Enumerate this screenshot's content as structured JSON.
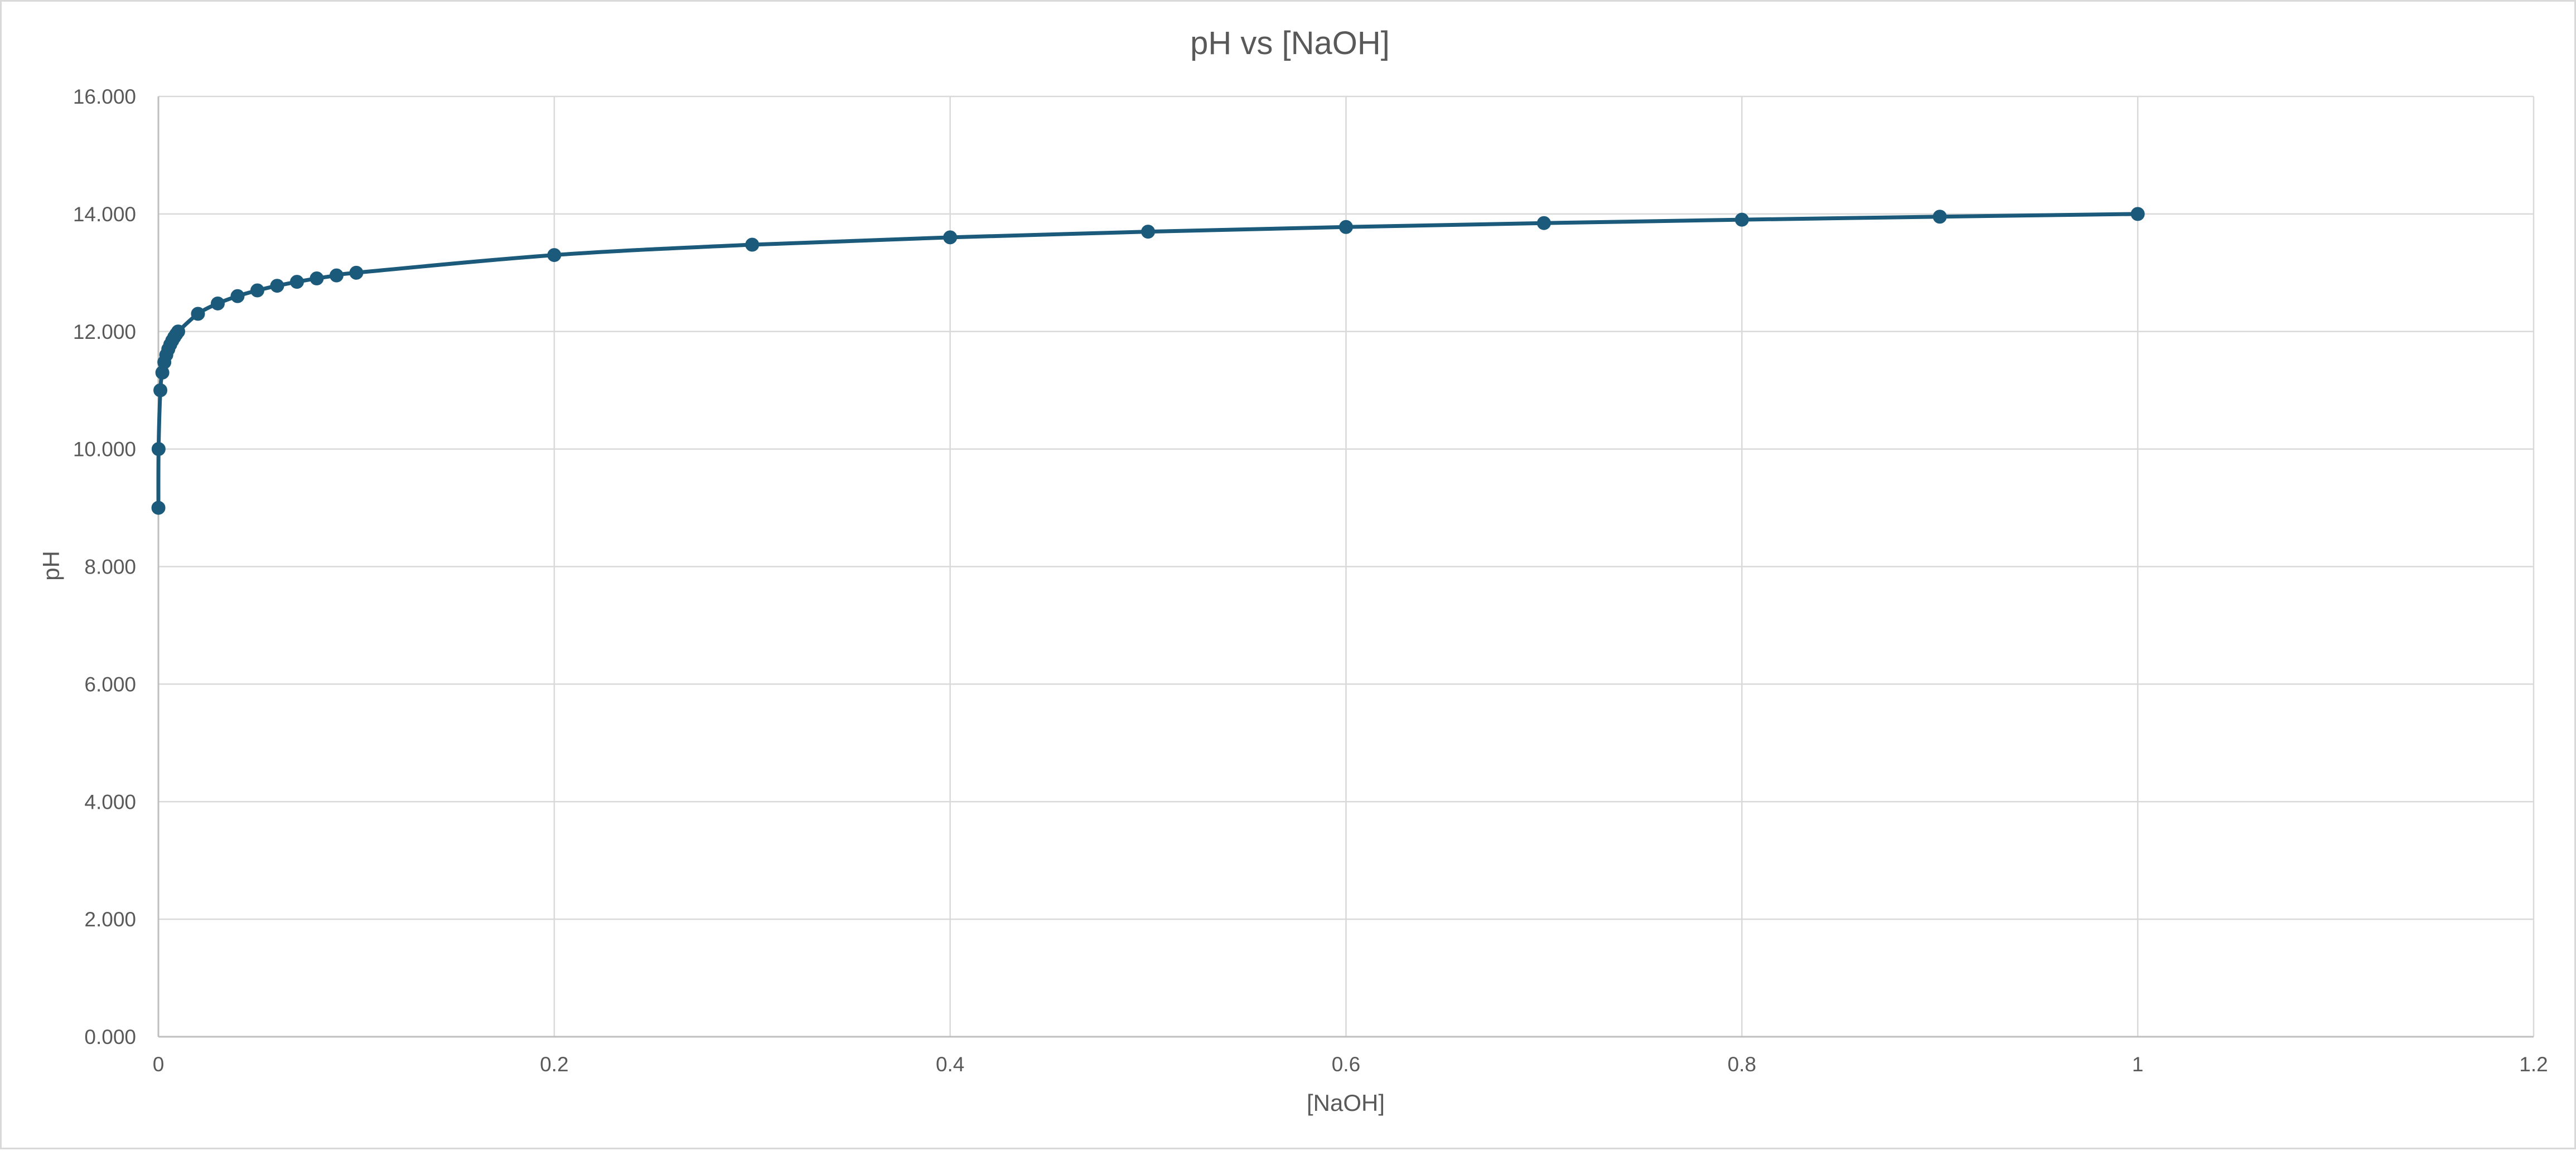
{
  "chart_data": {
    "type": "scatter",
    "title": "pH vs [NaOH]",
    "xlabel": "[NaOH]",
    "ylabel": "pH",
    "xlim": [
      0,
      1.2
    ],
    "ylim": [
      0,
      16
    ],
    "x_ticks": [
      "0",
      "0.2",
      "0.4",
      "0.6",
      "0.8",
      "1",
      "1.2"
    ],
    "y_ticks": [
      "0.000",
      "2.000",
      "4.000",
      "6.000",
      "8.000",
      "10.000",
      "12.000",
      "14.000",
      "16.000"
    ],
    "grid": true,
    "legend": "none",
    "series": [
      {
        "color": "#1b5a7a",
        "markers": true,
        "smooth": true,
        "points": [
          {
            "x": 1e-05,
            "y": 9.0
          },
          {
            "x": 0.0001,
            "y": 10.0
          },
          {
            "x": 0.001,
            "y": 11.0
          },
          {
            "x": 0.002,
            "y": 11.301
          },
          {
            "x": 0.003,
            "y": 11.477
          },
          {
            "x": 0.004,
            "y": 11.602
          },
          {
            "x": 0.005,
            "y": 11.699
          },
          {
            "x": 0.006,
            "y": 11.778
          },
          {
            "x": 0.007,
            "y": 11.845
          },
          {
            "x": 0.008,
            "y": 11.903
          },
          {
            "x": 0.009,
            "y": 11.954
          },
          {
            "x": 0.01,
            "y": 12.0
          },
          {
            "x": 0.02,
            "y": 12.301
          },
          {
            "x": 0.03,
            "y": 12.477
          },
          {
            "x": 0.04,
            "y": 12.602
          },
          {
            "x": 0.05,
            "y": 12.699
          },
          {
            "x": 0.06,
            "y": 12.778
          },
          {
            "x": 0.07,
            "y": 12.845
          },
          {
            "x": 0.08,
            "y": 12.903
          },
          {
            "x": 0.09,
            "y": 12.954
          },
          {
            "x": 0.1,
            "y": 13.0
          },
          {
            "x": 0.2,
            "y": 13.301
          },
          {
            "x": 0.3,
            "y": 13.477
          },
          {
            "x": 0.4,
            "y": 13.602
          },
          {
            "x": 0.5,
            "y": 13.699
          },
          {
            "x": 0.6,
            "y": 13.778
          },
          {
            "x": 0.7,
            "y": 13.845
          },
          {
            "x": 0.8,
            "y": 13.903
          },
          {
            "x": 0.9,
            "y": 13.954
          },
          {
            "x": 1.0,
            "y": 14.0
          }
        ]
      }
    ],
    "colors": {
      "grid": "#d9d9d9",
      "axis": "#bfbfbf",
      "text": "#595959"
    }
  }
}
